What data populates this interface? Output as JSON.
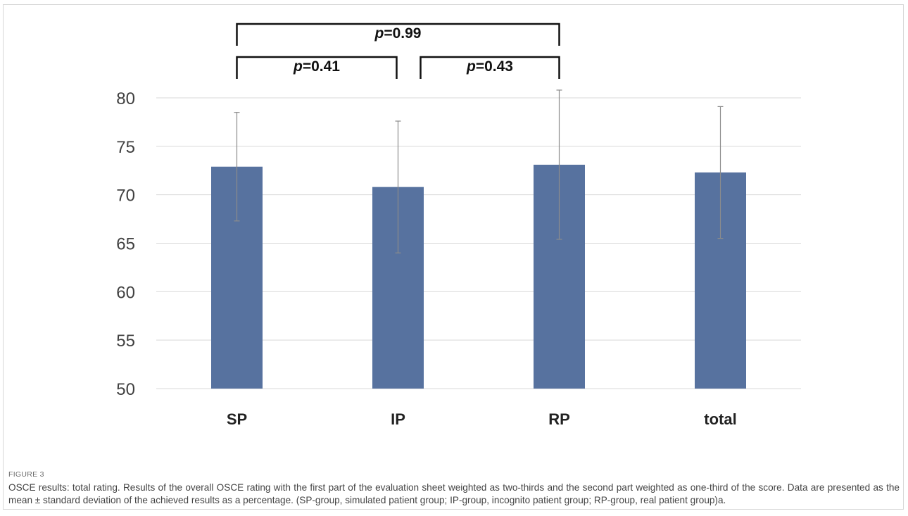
{
  "figure": {
    "label": "FIGURE 3",
    "caption": "OSCE results: total rating. Results of the overall OSCE rating with the first part of the evaluation sheet weighted as two-thirds and the second part weighted as one-third of the score. Data are presented as the mean ± standard deviation of the achieved results as a percentage. (SP-group, simulated patient group; IP-group, incognito patient group; RP-group, real patient group)a."
  },
  "chart_data": {
    "type": "bar",
    "categories": [
      "SP",
      "IP",
      "RP",
      "total"
    ],
    "values": [
      72.9,
      70.8,
      73.1,
      72.3
    ],
    "error": [
      5.6,
      6.8,
      7.7,
      6.8
    ],
    "ylim": [
      50,
      80
    ],
    "yticks": [
      50,
      55,
      60,
      65,
      70,
      75,
      80
    ],
    "grid": true,
    "bar_color": "#57729f",
    "annotations": [
      {
        "from": "SP",
        "to": "RP",
        "level": 2,
        "label_prefix": "p",
        "label_value": "=0.99"
      },
      {
        "from": "SP",
        "to": "IP",
        "level": 1,
        "label_prefix": "p",
        "label_value": "=0.41"
      },
      {
        "from": "IP",
        "to": "RP",
        "level": 1,
        "label_prefix": "p",
        "label_value": "=0.43"
      }
    ]
  }
}
